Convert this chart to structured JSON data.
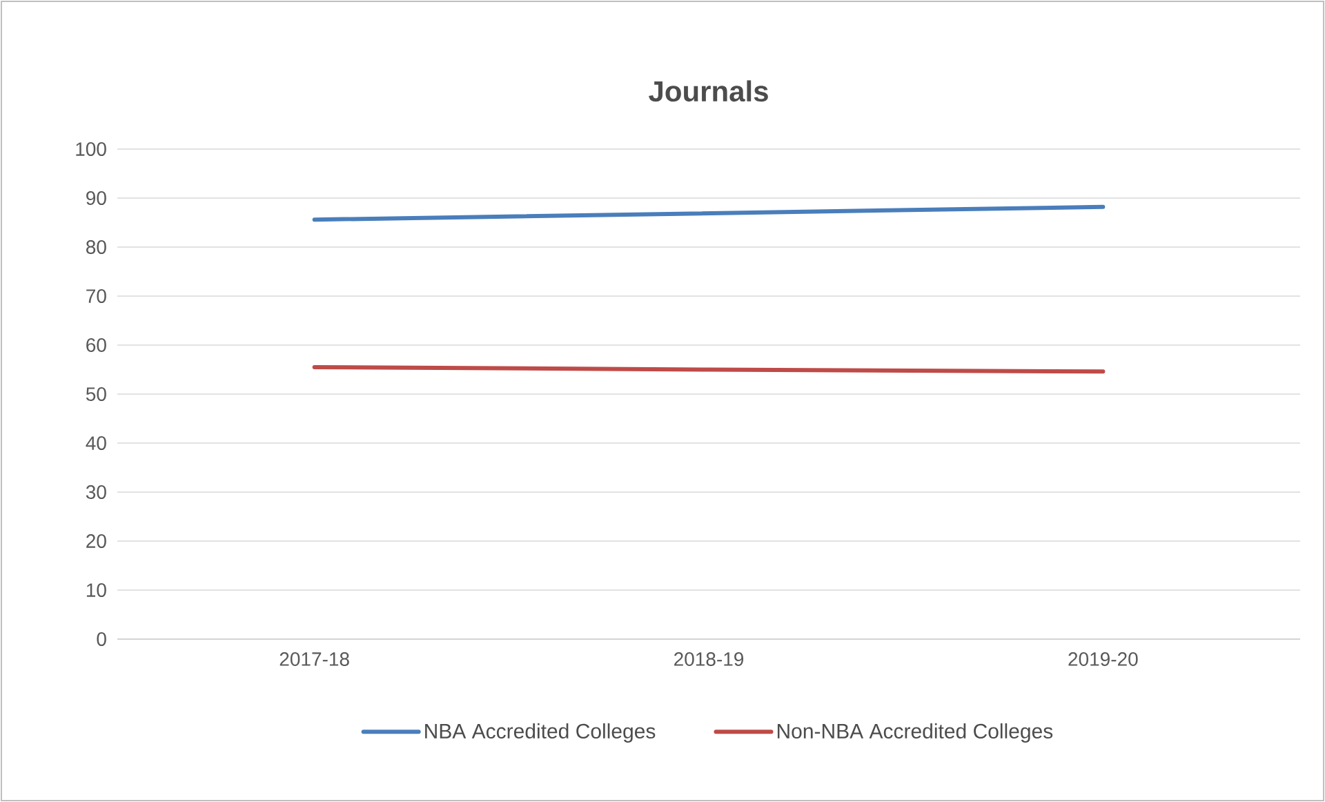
{
  "chart_data": {
    "type": "line",
    "title": "Journals",
    "categories": [
      "2017-18",
      "2018-19",
      "2019-20"
    ],
    "series": [
      {
        "name": "NBA Accredited Colleges",
        "color": "#4a7ebb",
        "values": [
          85.6,
          86.9,
          88.2
        ]
      },
      {
        "name": "Non-NBA Accredited Colleges",
        "color": "#be4b48",
        "values": [
          55.5,
          55.0,
          54.6
        ]
      }
    ],
    "ylim": [
      0,
      100
    ],
    "yticks": [
      0,
      10,
      20,
      30,
      40,
      50,
      60,
      70,
      80,
      90,
      100
    ],
    "grid": "y",
    "legend": "bottom",
    "marker": "none",
    "line_style": "solid"
  }
}
